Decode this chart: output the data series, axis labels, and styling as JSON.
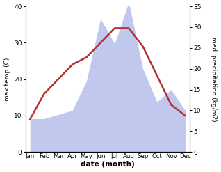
{
  "months": [
    "Jan",
    "Feb",
    "Mar",
    "Apr",
    "May",
    "Jun",
    "Jul",
    "Aug",
    "Sep",
    "Oct",
    "Nov",
    "Dec"
  ],
  "temperature": [
    9,
    16,
    20,
    24,
    26,
    30,
    34,
    34,
    29,
    21,
    13,
    10
  ],
  "precipitation": [
    8,
    8,
    9,
    10,
    17,
    32,
    26,
    36,
    20,
    12,
    15,
    10
  ],
  "temp_color": "#b03030",
  "precip_fill_color": "#c0c8ee",
  "temp_ylim": [
    0,
    40
  ],
  "precip_ylim": [
    0,
    35
  ],
  "temp_yticks": [
    0,
    10,
    20,
    30,
    40
  ],
  "precip_yticks": [
    0,
    5,
    10,
    15,
    20,
    25,
    30,
    35
  ],
  "ylabel_left": "max temp (C)",
  "ylabel_right": "med. precipitation (kg/m2)",
  "xlabel": "date (month)",
  "figsize": [
    3.18,
    2.47
  ],
  "dpi": 100,
  "background_color": "#ffffff"
}
